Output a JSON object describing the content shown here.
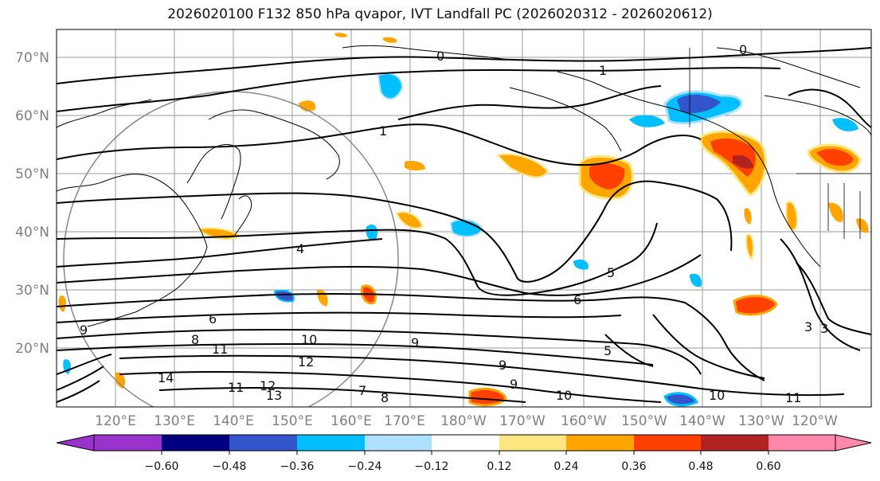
{
  "title": "2026020100 F132 850 hPa qvapor, IVT Landfall PC (2026020312 - 2026020612)",
  "lat_labels": [
    "70°N",
    "60°N",
    "50°N",
    "40°N",
    "30°N",
    "20°N"
  ],
  "lon_labels": [
    "120°E",
    "130°E",
    "140°E",
    "150°E",
    "160°E",
    "170°E",
    "180°W",
    "170°W",
    "160°W",
    "150°W",
    "140°W",
    "130°W",
    "120°W"
  ],
  "contour_labels": [
    "0",
    "0",
    "1",
    "1",
    "4",
    "5",
    "6",
    "6",
    "8",
    "9",
    "9",
    "10",
    "10",
    "11",
    "11",
    "11",
    "12",
    "13",
    "14",
    "3",
    "7",
    "8",
    "9",
    "9",
    "10",
    "12",
    "5",
    "3"
  ],
  "colorbar": {
    "ticks": [
      "−0.60",
      "−0.48",
      "−0.36",
      "−0.24",
      "−0.12",
      "0.12",
      "0.24",
      "0.36",
      "0.48",
      "0.60"
    ],
    "colors": [
      "#9933cc",
      "#000080",
      "#3355cc",
      "#00bfff",
      "#aee0ff",
      "#ffffff",
      "#ffe680",
      "#ffa500",
      "#ff4000",
      "#b22222",
      "#ff88aa"
    ]
  }
}
